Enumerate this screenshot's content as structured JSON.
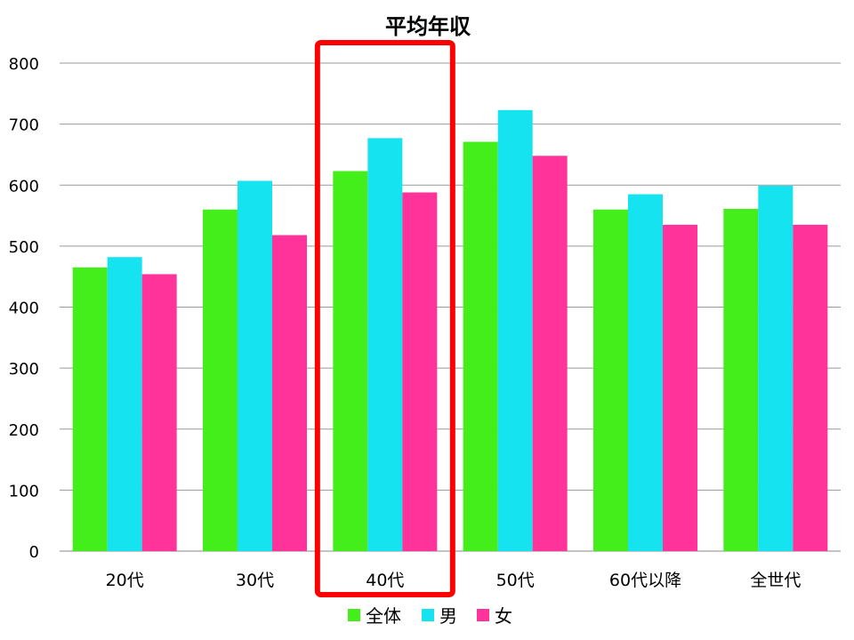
{
  "chart_data": {
    "type": "bar",
    "title": "平均年収",
    "xlabel": "",
    "ylabel": "",
    "ylim": [
      0,
      800
    ],
    "yticks": [
      0,
      100,
      200,
      300,
      400,
      500,
      600,
      700,
      800
    ],
    "grid": true,
    "legend_position": "bottom",
    "categories": [
      "20代",
      "30代",
      "40代",
      "50代",
      "60代以降",
      "全世代"
    ],
    "highlight_category": "40代",
    "highlight_color": "#ff0000",
    "series": [
      {
        "name": "全体",
        "color": "#44ee1a",
        "values": [
          465,
          560,
          623,
          671,
          560,
          561
        ]
      },
      {
        "name": "男",
        "color": "#15e3f0",
        "values": [
          482,
          607,
          677,
          723,
          585,
          599
        ]
      },
      {
        "name": "女",
        "color": "#ff3399",
        "values": [
          454,
          518,
          588,
          648,
          535,
          535
        ]
      }
    ]
  }
}
